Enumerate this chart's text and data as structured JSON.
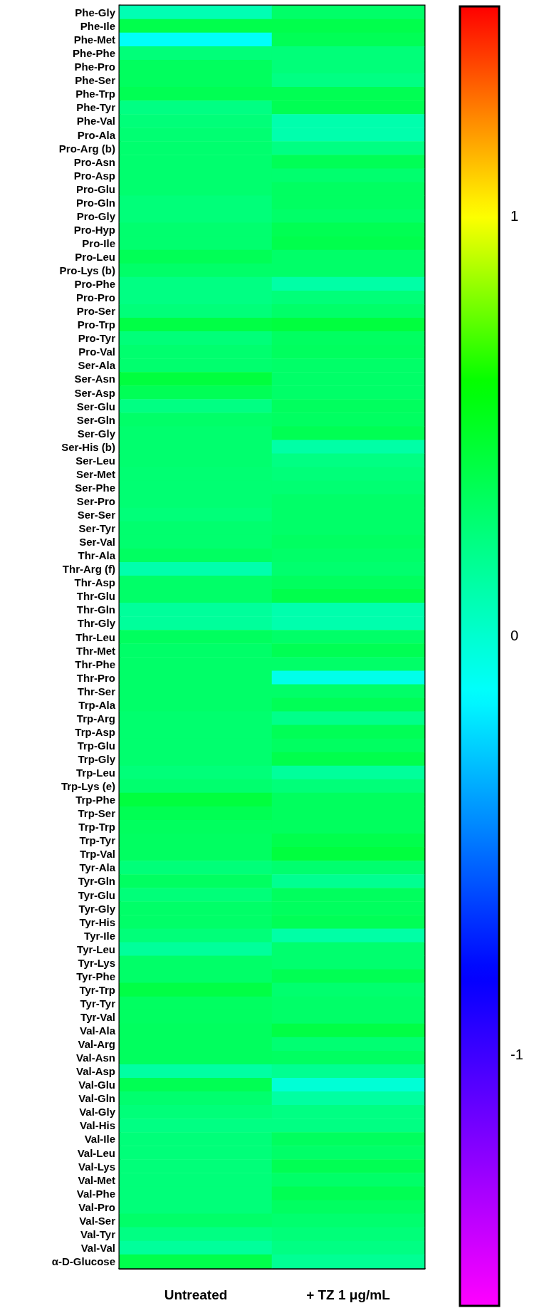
{
  "chart_data": {
    "type": "heatmap",
    "categories": [
      "Untreated",
      "+ TZ 1 μg/mL"
    ],
    "y_categories": [
      "Phe-Gly",
      "Phe-Ile",
      "Phe-Met",
      "Phe-Phe",
      "Phe-Pro",
      "Phe-Ser",
      "Phe-Trp",
      "Phe-Tyr",
      "Phe-Val",
      "Pro-Ala",
      "Pro-Arg (b)",
      "Pro-Asn",
      "Pro-Asp",
      "Pro-Glu",
      "Pro-Gln",
      "Pro-Gly",
      "Pro-Hyp",
      "Pro-Ile",
      "Pro-Leu",
      "Pro-Lys (b)",
      "Pro-Phe",
      "Pro-Pro",
      "Pro-Ser",
      "Pro-Trp",
      "Pro-Tyr",
      "Pro-Val",
      "Ser-Ala",
      "Ser-Asn",
      "Ser-Asp",
      "Ser-Glu",
      "Ser-Gln",
      "Ser-Gly",
      "Ser-His (b)",
      "Ser-Leu",
      "Ser-Met",
      "Ser-Phe",
      "Ser-Pro",
      "Ser-Ser",
      "Ser-Tyr",
      "Ser-Val",
      "Thr-Ala",
      "Thr-Arg (f)",
      "Thr-Asp",
      "Thr-Glu",
      "Thr-Gln",
      "Thr-Gly",
      "Thr-Leu",
      "Thr-Met",
      "Thr-Phe",
      "Thr-Pro",
      "Thr-Ser",
      "Trp-Ala",
      "Trp-Arg",
      "Trp-Asp",
      "Trp-Glu",
      "Trp-Gly",
      "Trp-Leu",
      "Trp-Lys (e)",
      "Trp-Phe",
      "Trp-Ser",
      "Trp-Trp",
      "Trp-Tyr",
      "Trp-Val",
      "Tyr-Ala",
      "Tyr-Gln",
      "Tyr-Glu",
      "Tyr-Gly",
      "Tyr-His",
      "Tyr-Ile",
      "Tyr-Leu",
      "Tyr-Lys",
      "Tyr-Phe",
      "Tyr-Trp",
      "Tyr-Tyr",
      "Tyr-Val",
      "Val-Ala",
      "Val-Arg",
      "Val-Asn",
      "Val-Asp",
      "Val-Glu",
      "Val-Gln",
      "Val-Gly",
      "Val-His",
      "Val-Ile",
      "Val-Leu",
      "Val-Lys",
      "Val-Met",
      "Val-Phe",
      "Val-Pro",
      "Val-Ser",
      "Val-Tyr",
      "Val-Val",
      "α-D-Glucose"
    ],
    "cells": [
      [
        0.08,
        0.3
      ],
      [
        0.38,
        0.38
      ],
      [
        -0.12,
        0.35
      ],
      [
        0.25,
        0.25
      ],
      [
        0.33,
        0.25
      ],
      [
        0.33,
        0.22
      ],
      [
        0.36,
        0.36
      ],
      [
        0.22,
        0.36
      ],
      [
        0.25,
        0.1
      ],
      [
        0.27,
        0.1
      ],
      [
        0.28,
        0.22
      ],
      [
        0.28,
        0.35
      ],
      [
        0.28,
        0.28
      ],
      [
        0.28,
        0.32
      ],
      [
        0.25,
        0.32
      ],
      [
        0.25,
        0.3
      ],
      [
        0.28,
        0.36
      ],
      [
        0.28,
        0.38
      ],
      [
        0.35,
        0.3
      ],
      [
        0.3,
        0.3
      ],
      [
        0.22,
        0.12
      ],
      [
        0.22,
        0.25
      ],
      [
        0.25,
        0.3
      ],
      [
        0.4,
        0.42
      ],
      [
        0.25,
        0.32
      ],
      [
        0.28,
        0.33
      ],
      [
        0.28,
        0.3
      ],
      [
        0.42,
        0.3
      ],
      [
        0.35,
        0.3
      ],
      [
        0.22,
        0.33
      ],
      [
        0.3,
        0.32
      ],
      [
        0.28,
        0.36
      ],
      [
        0.28,
        0.12
      ],
      [
        0.28,
        0.22
      ],
      [
        0.27,
        0.25
      ],
      [
        0.27,
        0.27
      ],
      [
        0.27,
        0.3
      ],
      [
        0.25,
        0.3
      ],
      [
        0.28,
        0.3
      ],
      [
        0.28,
        0.32
      ],
      [
        0.32,
        0.3
      ],
      [
        0.1,
        0.28
      ],
      [
        0.3,
        0.33
      ],
      [
        0.3,
        0.38
      ],
      [
        0.15,
        0.1
      ],
      [
        0.15,
        0.1
      ],
      [
        0.33,
        0.3
      ],
      [
        0.3,
        0.36
      ],
      [
        0.3,
        0.3
      ],
      [
        0.3,
        -0.08
      ],
      [
        0.3,
        0.3
      ],
      [
        0.3,
        0.35
      ],
      [
        0.28,
        0.2
      ],
      [
        0.28,
        0.35
      ],
      [
        0.28,
        0.32
      ],
      [
        0.28,
        0.38
      ],
      [
        0.25,
        0.15
      ],
      [
        0.28,
        0.25
      ],
      [
        0.42,
        0.33
      ],
      [
        0.36,
        0.33
      ],
      [
        0.33,
        0.33
      ],
      [
        0.32,
        0.38
      ],
      [
        0.32,
        0.42
      ],
      [
        0.25,
        0.28
      ],
      [
        0.32,
        0.18
      ],
      [
        0.25,
        0.33
      ],
      [
        0.3,
        0.33
      ],
      [
        0.3,
        0.35
      ],
      [
        0.25,
        0.12
      ],
      [
        0.15,
        0.28
      ],
      [
        0.3,
        0.28
      ],
      [
        0.3,
        0.36
      ],
      [
        0.4,
        0.28
      ],
      [
        0.32,
        0.3
      ],
      [
        0.32,
        0.3
      ],
      [
        0.33,
        0.4
      ],
      [
        0.33,
        0.27
      ],
      [
        0.33,
        0.32
      ],
      [
        0.13,
        0.18
      ],
      [
        0.36,
        -0.02
      ],
      [
        0.28,
        0.13
      ],
      [
        0.25,
        0.22
      ],
      [
        0.22,
        0.22
      ],
      [
        0.25,
        0.33
      ],
      [
        0.25,
        0.3
      ],
      [
        0.25,
        0.36
      ],
      [
        0.25,
        0.3
      ],
      [
        0.25,
        0.36
      ],
      [
        0.25,
        0.32
      ],
      [
        0.3,
        0.28
      ],
      [
        0.22,
        0.25
      ],
      [
        0.15,
        0.22
      ],
      [
        0.38,
        0.17
      ]
    ],
    "clim": [
      -1.6,
      1.5
    ],
    "cticks": [
      -1,
      0,
      1
    ]
  }
}
